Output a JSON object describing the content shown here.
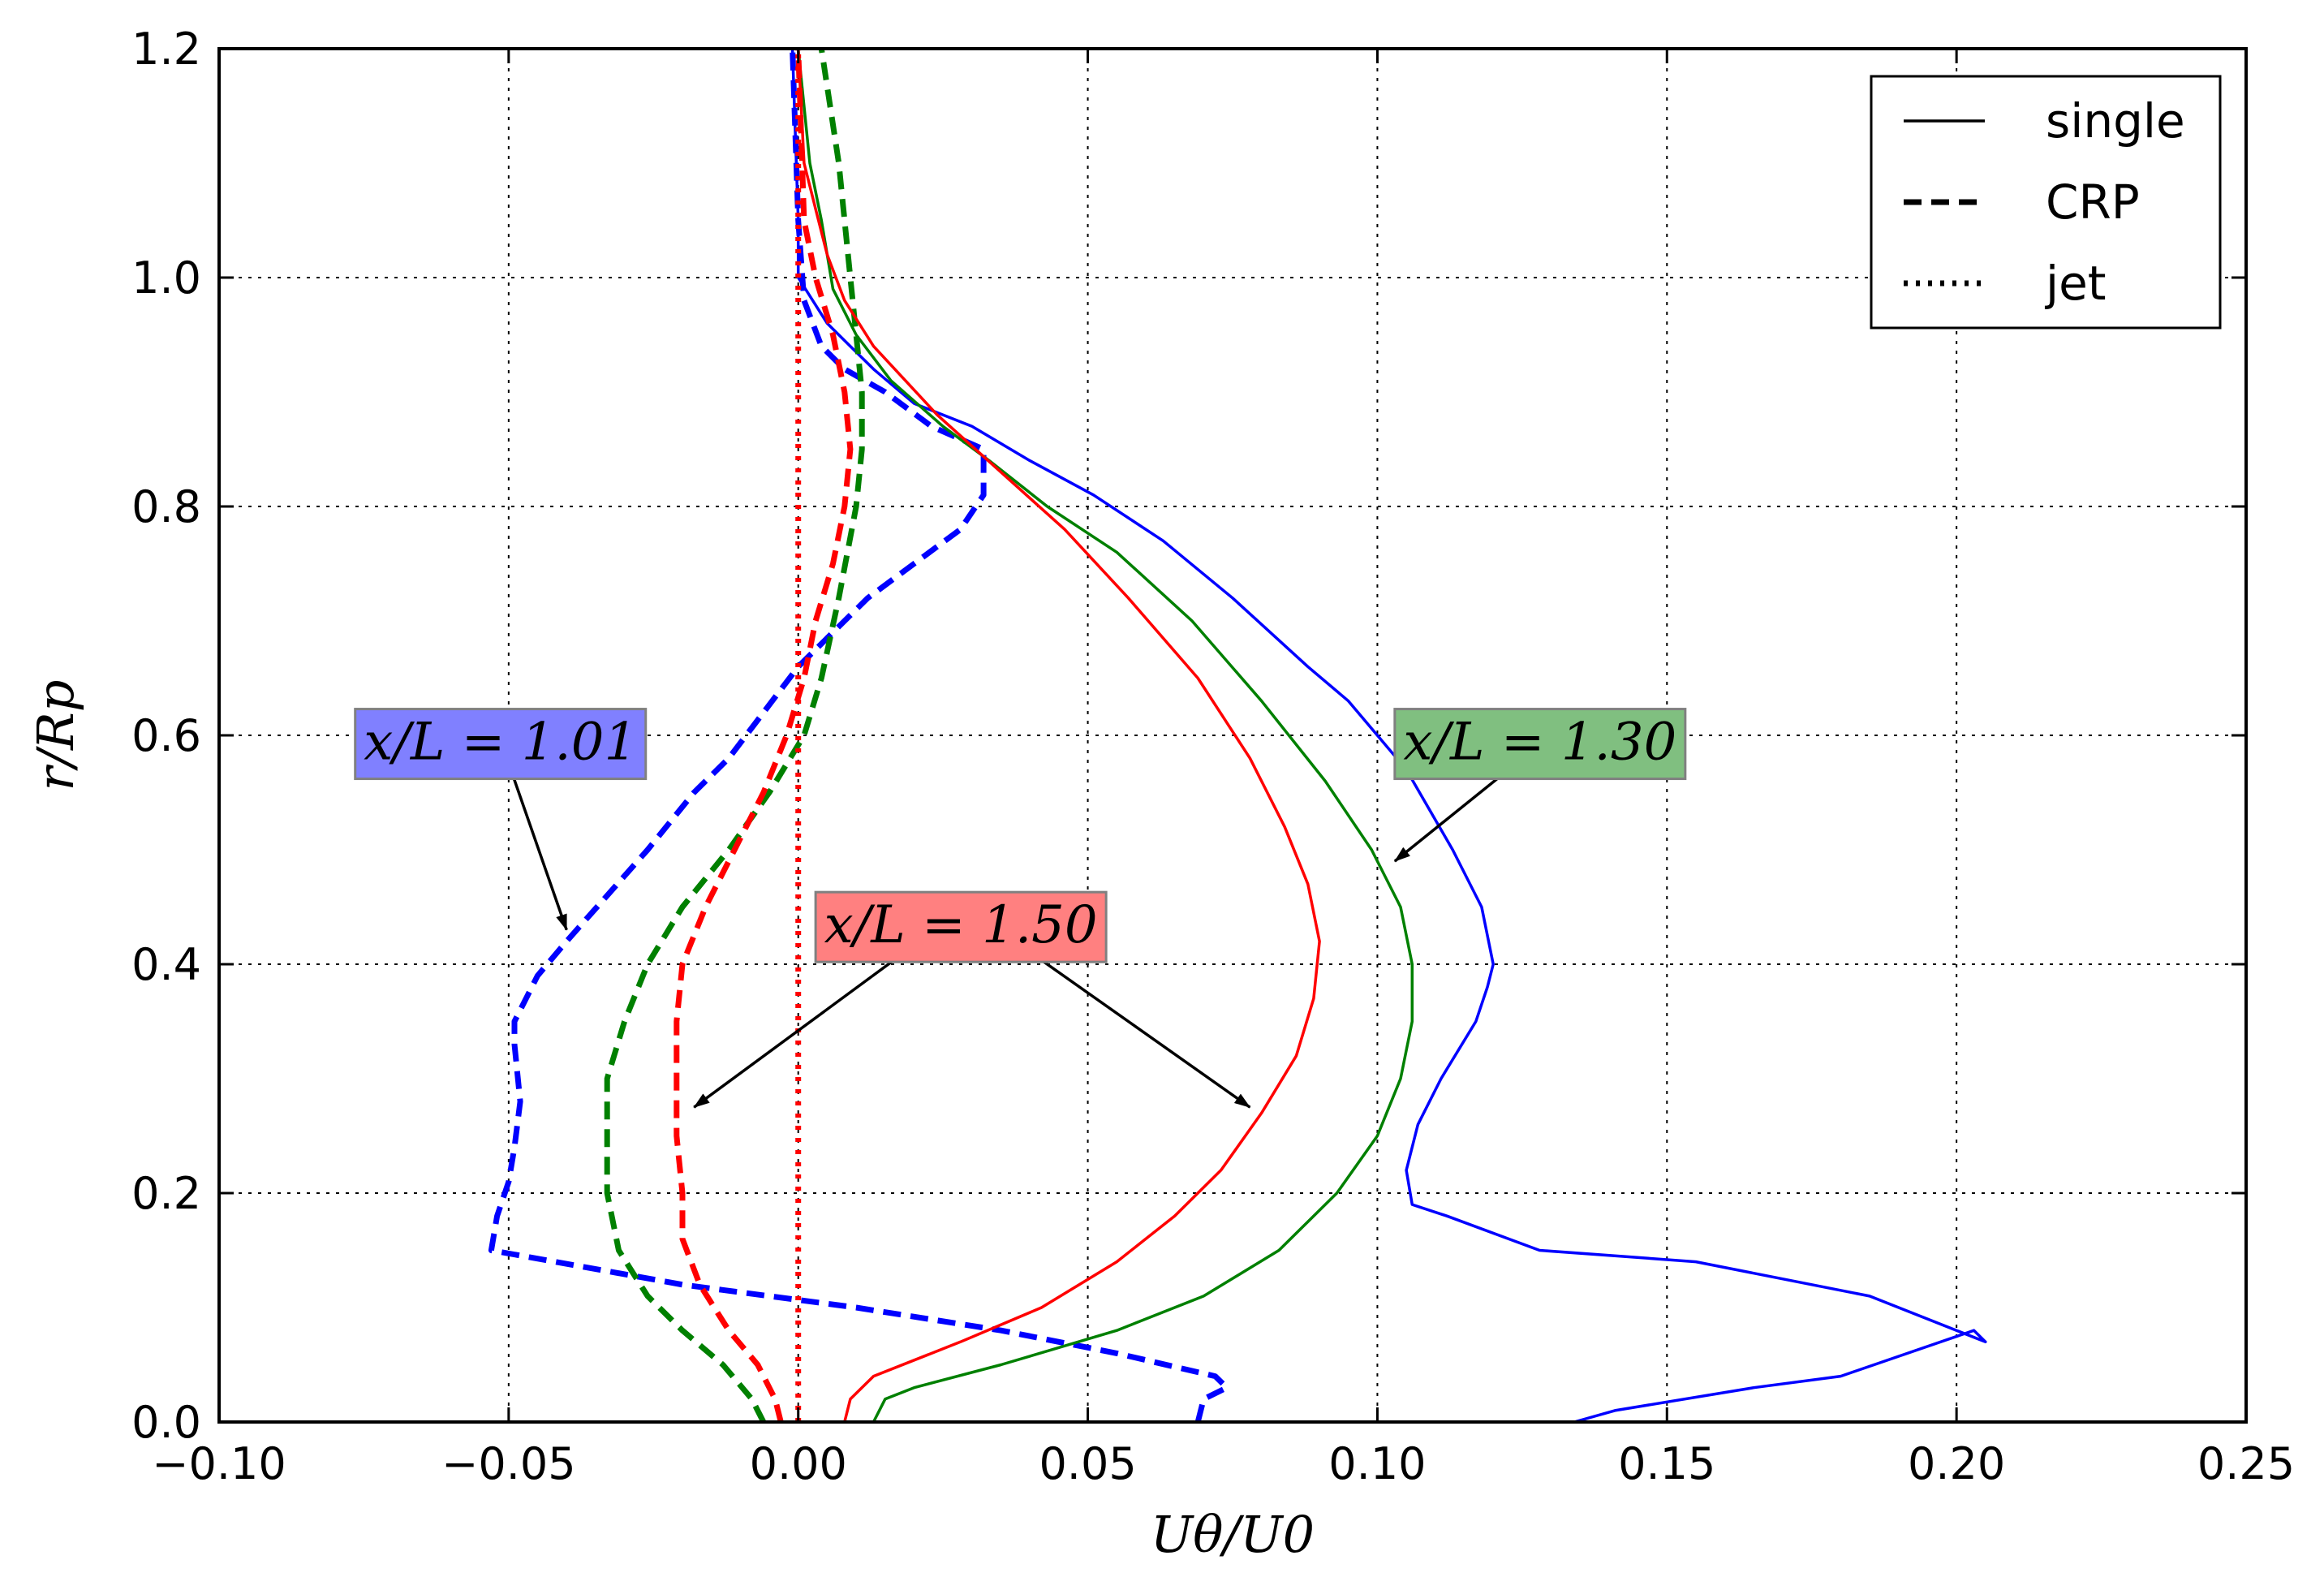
{
  "chart_data": {
    "type": "line",
    "xlabel": "Uθ/U0",
    "ylabel": "r/Rp",
    "xlim": [
      -0.1,
      0.25
    ],
    "ylim": [
      0.0,
      1.2
    ],
    "grid": true,
    "legend_position": "top-right",
    "x_ticks": [
      -0.1,
      -0.05,
      0.0,
      0.05,
      0.1,
      0.15,
      0.2,
      0.25
    ],
    "x_tick_labels": [
      "−0.10",
      "−0.05",
      "0.00",
      "0.05",
      "0.10",
      "0.15",
      "0.20",
      "0.25"
    ],
    "y_ticks": [
      0.0,
      0.2,
      0.4,
      0.6,
      0.8,
      1.0,
      1.2
    ],
    "y_tick_labels": [
      "0.0",
      "0.2",
      "0.4",
      "0.6",
      "0.8",
      "1.0",
      "1.2"
    ],
    "legend": [
      {
        "label": "single",
        "style": "solid"
      },
      {
        "label": "CRP",
        "style": "dashed"
      },
      {
        "label": "jet",
        "style": "dotted"
      }
    ],
    "series": [
      {
        "name": "x/L=1.01 single",
        "color": "#0000ff",
        "style": "solid",
        "points": [
          [
            0.134,
            0.0
          ],
          [
            0.141,
            0.01
          ],
          [
            0.165,
            0.03
          ],
          [
            0.18,
            0.04
          ],
          [
            0.203,
            0.08
          ],
          [
            0.205,
            0.07
          ],
          [
            0.185,
            0.11
          ],
          [
            0.155,
            0.14
          ],
          [
            0.128,
            0.15
          ],
          [
            0.112,
            0.18
          ],
          [
            0.106,
            0.19
          ],
          [
            0.105,
            0.22
          ],
          [
            0.107,
            0.26
          ],
          [
            0.111,
            0.3
          ],
          [
            0.117,
            0.35
          ],
          [
            0.119,
            0.38
          ],
          [
            0.12,
            0.4
          ],
          [
            0.118,
            0.45
          ],
          [
            0.113,
            0.5
          ],
          [
            0.105,
            0.57
          ],
          [
            0.095,
            0.63
          ],
          [
            0.088,
            0.66
          ],
          [
            0.075,
            0.72
          ],
          [
            0.063,
            0.77
          ],
          [
            0.051,
            0.81
          ],
          [
            0.04,
            0.84
          ],
          [
            0.03,
            0.87
          ],
          [
            0.02,
            0.89
          ],
          [
            0.013,
            0.92
          ],
          [
            0.009,
            0.94
          ],
          [
            0.005,
            0.96
          ],
          [
            0.0,
            1.0
          ],
          [
            0.0,
            1.05
          ],
          [
            -0.001,
            1.2
          ]
        ]
      },
      {
        "name": "x/L=1.01 CRP",
        "color": "#0000ff",
        "style": "dashed",
        "points": [
          [
            0.069,
            0.0
          ],
          [
            0.07,
            0.02
          ],
          [
            0.074,
            0.03
          ],
          [
            0.072,
            0.04
          ],
          [
            0.055,
            0.06
          ],
          [
            0.035,
            0.08
          ],
          [
            0.01,
            0.1
          ],
          [
            -0.02,
            0.12
          ],
          [
            -0.053,
            0.15
          ],
          [
            -0.052,
            0.18
          ],
          [
            -0.05,
            0.21
          ],
          [
            -0.049,
            0.24
          ],
          [
            -0.048,
            0.28
          ],
          [
            -0.049,
            0.33
          ],
          [
            -0.049,
            0.35
          ],
          [
            -0.045,
            0.39
          ],
          [
            -0.04,
            0.42
          ],
          [
            -0.033,
            0.46
          ],
          [
            -0.026,
            0.5
          ],
          [
            -0.018,
            0.55
          ],
          [
            -0.012,
            0.58
          ],
          [
            -0.006,
            0.62
          ],
          [
            0.0,
            0.66
          ],
          [
            0.006,
            0.69
          ],
          [
            0.012,
            0.72
          ],
          [
            0.02,
            0.75
          ],
          [
            0.028,
            0.78
          ],
          [
            0.032,
            0.81
          ],
          [
            0.032,
            0.85
          ],
          [
            0.023,
            0.87
          ],
          [
            0.015,
            0.9
          ],
          [
            0.008,
            0.92
          ],
          [
            0.004,
            0.94
          ],
          [
            0.001,
            0.98
          ],
          [
            0.0,
            1.05
          ],
          [
            -0.001,
            1.2
          ]
        ]
      },
      {
        "name": "x/L=1.30 single",
        "color": "#008000",
        "style": "solid",
        "points": [
          [
            0.013,
            0.0
          ],
          [
            0.015,
            0.02
          ],
          [
            0.02,
            0.03
          ],
          [
            0.035,
            0.05
          ],
          [
            0.055,
            0.08
          ],
          [
            0.07,
            0.11
          ],
          [
            0.083,
            0.15
          ],
          [
            0.093,
            0.2
          ],
          [
            0.1,
            0.25
          ],
          [
            0.104,
            0.3
          ],
          [
            0.106,
            0.35
          ],
          [
            0.106,
            0.4
          ],
          [
            0.104,
            0.45
          ],
          [
            0.099,
            0.5
          ],
          [
            0.091,
            0.56
          ],
          [
            0.08,
            0.63
          ],
          [
            0.068,
            0.7
          ],
          [
            0.055,
            0.76
          ],
          [
            0.043,
            0.8
          ],
          [
            0.033,
            0.84
          ],
          [
            0.025,
            0.87
          ],
          [
            0.016,
            0.91
          ],
          [
            0.01,
            0.95
          ],
          [
            0.006,
            0.99
          ],
          [
            0.004,
            1.05
          ],
          [
            0.002,
            1.1
          ],
          [
            0.0,
            1.2
          ]
        ]
      },
      {
        "name": "x/L=1.30 CRP",
        "color": "#008000",
        "style": "dashed",
        "points": [
          [
            -0.006,
            0.0
          ],
          [
            -0.008,
            0.02
          ],
          [
            -0.013,
            0.05
          ],
          [
            -0.02,
            0.08
          ],
          [
            -0.026,
            0.11
          ],
          [
            -0.031,
            0.15
          ],
          [
            -0.033,
            0.2
          ],
          [
            -0.033,
            0.25
          ],
          [
            -0.033,
            0.3
          ],
          [
            -0.03,
            0.35
          ],
          [
            -0.026,
            0.4
          ],
          [
            -0.02,
            0.45
          ],
          [
            -0.012,
            0.5
          ],
          [
            -0.005,
            0.55
          ],
          [
            0.001,
            0.6
          ],
          [
            0.004,
            0.65
          ],
          [
            0.007,
            0.72
          ],
          [
            0.01,
            0.8
          ],
          [
            0.011,
            0.85
          ],
          [
            0.011,
            0.9
          ],
          [
            0.01,
            0.95
          ],
          [
            0.009,
            1.0
          ],
          [
            0.008,
            1.05
          ],
          [
            0.007,
            1.1
          ],
          [
            0.004,
            1.2
          ]
        ]
      },
      {
        "name": "x/L=1.50 single",
        "color": "#ff0000",
        "style": "solid",
        "points": [
          [
            0.008,
            0.0
          ],
          [
            0.009,
            0.02
          ],
          [
            0.013,
            0.04
          ],
          [
            0.028,
            0.07
          ],
          [
            0.042,
            0.1
          ],
          [
            0.055,
            0.14
          ],
          [
            0.065,
            0.18
          ],
          [
            0.073,
            0.22
          ],
          [
            0.08,
            0.27
          ],
          [
            0.086,
            0.32
          ],
          [
            0.089,
            0.37
          ],
          [
            0.09,
            0.42
          ],
          [
            0.088,
            0.47
          ],
          [
            0.084,
            0.52
          ],
          [
            0.078,
            0.58
          ],
          [
            0.069,
            0.65
          ],
          [
            0.057,
            0.72
          ],
          [
            0.046,
            0.78
          ],
          [
            0.035,
            0.83
          ],
          [
            0.024,
            0.88
          ],
          [
            0.013,
            0.94
          ],
          [
            0.008,
            0.98
          ],
          [
            0.005,
            1.02
          ],
          [
            0.003,
            1.06
          ],
          [
            0.001,
            1.1
          ],
          [
            0.0,
            1.2
          ]
        ]
      },
      {
        "name": "x/L=1.50 CRP",
        "color": "#ff0000",
        "style": "dashed",
        "points": [
          [
            -0.003,
            0.0
          ],
          [
            -0.004,
            0.02
          ],
          [
            -0.007,
            0.05
          ],
          [
            -0.012,
            0.08
          ],
          [
            -0.017,
            0.12
          ],
          [
            -0.02,
            0.16
          ],
          [
            -0.02,
            0.2
          ],
          [
            -0.021,
            0.25
          ],
          [
            -0.021,
            0.3
          ],
          [
            -0.021,
            0.35
          ],
          [
            -0.02,
            0.4
          ],
          [
            -0.016,
            0.45
          ],
          [
            -0.011,
            0.5
          ],
          [
            -0.006,
            0.55
          ],
          [
            -0.002,
            0.6
          ],
          [
            0.001,
            0.65
          ],
          [
            0.003,
            0.7
          ],
          [
            0.006,
            0.75
          ],
          [
            0.008,
            0.8
          ],
          [
            0.009,
            0.85
          ],
          [
            0.008,
            0.9
          ],
          [
            0.006,
            0.95
          ],
          [
            0.003,
            1.0
          ],
          [
            0.001,
            1.05
          ],
          [
            0.0,
            1.2
          ]
        ]
      },
      {
        "name": "jet",
        "color": "#ff0000",
        "style": "dotted",
        "points": [
          [
            0.0,
            0.0
          ],
          [
            0.0,
            1.2
          ]
        ]
      }
    ],
    "annotations": [
      {
        "text": "x/L = 1.01",
        "bg": "#8080ff"
      },
      {
        "text": "x/L = 1.30",
        "bg": "#80bf80"
      },
      {
        "text": "x/L = 1.50",
        "bg": "#ff8080"
      }
    ]
  }
}
